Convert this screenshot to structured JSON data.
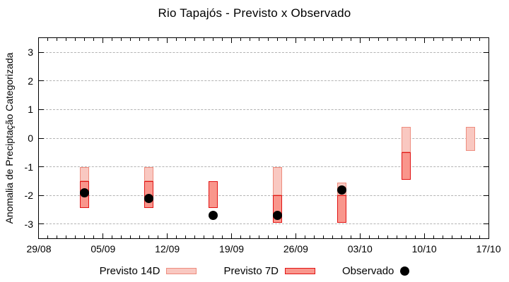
{
  "title": "Rio Tapajós - Previsto x Observado",
  "chart_data": {
    "type": "bar",
    "subtype": "floating forecast range bars with observed scatter points (gnuplot style)",
    "title": "Rio Tapajós - Previsto x Observado",
    "ylabel": "Anomalia de Preciptação Categorizada",
    "xlabel": "",
    "ylim": [
      -3.5,
      3.5
    ],
    "yticks": [
      3,
      2,
      1,
      0,
      -1,
      -2,
      -3
    ],
    "grid": "horizontal dashed gridlines at integer y values",
    "axis_color": "#000000",
    "gridline_color": "#b3b3b3",
    "x_total_days": 49,
    "x_major_ticks": [
      {
        "day": 0,
        "label": "29/08"
      },
      {
        "day": 7,
        "label": "05/09"
      },
      {
        "day": 14,
        "label": "12/09"
      },
      {
        "day": 21,
        "label": "19/09"
      },
      {
        "day": 28,
        "label": "26/09"
      },
      {
        "day": 35,
        "label": "03/10"
      },
      {
        "day": 42,
        "label": "10/10"
      },
      {
        "day": 49,
        "label": "17/10"
      }
    ],
    "x_minor_tick_every_days": 1,
    "series": [
      {
        "name": "Previsto 14D",
        "kind": "range_bar",
        "fill": "#f9c8c1",
        "border": "#ee8d7f",
        "bars": [
          {
            "date": "03/09",
            "day": 5,
            "top": -1.0,
            "bottom": -1.5
          },
          {
            "date": "10/09",
            "day": 12,
            "top": -1.0,
            "bottom": -1.5
          },
          {
            "date": "24/09",
            "day": 26,
            "top": -1.0,
            "bottom": -2.0
          },
          {
            "date": "01/10",
            "day": 33,
            "top": -1.55,
            "bottom": -2.0
          },
          {
            "date": "08/10",
            "day": 40,
            "top": 0.4,
            "bottom": -0.5
          },
          {
            "date": "15/10",
            "day": 47,
            "top": 0.4,
            "bottom": -0.45
          }
        ]
      },
      {
        "name": "Previsto 7D",
        "kind": "range_bar",
        "fill": "#f9968c",
        "border": "#e11414",
        "bars": [
          {
            "date": "03/09",
            "day": 5,
            "top": -1.5,
            "bottom": -2.45
          },
          {
            "date": "10/09",
            "day": 12,
            "top": -1.5,
            "bottom": -2.45
          },
          {
            "date": "17/09",
            "day": 19,
            "top": -1.5,
            "bottom": -2.45
          },
          {
            "date": "24/09",
            "day": 26,
            "top": -2.0,
            "bottom": -2.95
          },
          {
            "date": "01/10",
            "day": 33,
            "top": -2.0,
            "bottom": -2.95
          },
          {
            "date": "08/10",
            "day": 40,
            "top": -0.5,
            "bottom": -1.45
          }
        ]
      },
      {
        "name": "Observado",
        "kind": "point",
        "color": "#000000",
        "points": [
          {
            "date": "03/09",
            "day": 5,
            "value": -1.9
          },
          {
            "date": "10/09",
            "day": 12,
            "value": -2.1
          },
          {
            "date": "17/09",
            "day": 19,
            "value": -2.7
          },
          {
            "date": "24/09",
            "day": 26,
            "value": -2.7
          },
          {
            "date": "01/10",
            "day": 33,
            "value": -1.8
          }
        ]
      }
    ],
    "legend": {
      "position": "bottom center",
      "items": [
        "Previsto 14D",
        "Previsto 7D",
        "Observado"
      ]
    }
  }
}
